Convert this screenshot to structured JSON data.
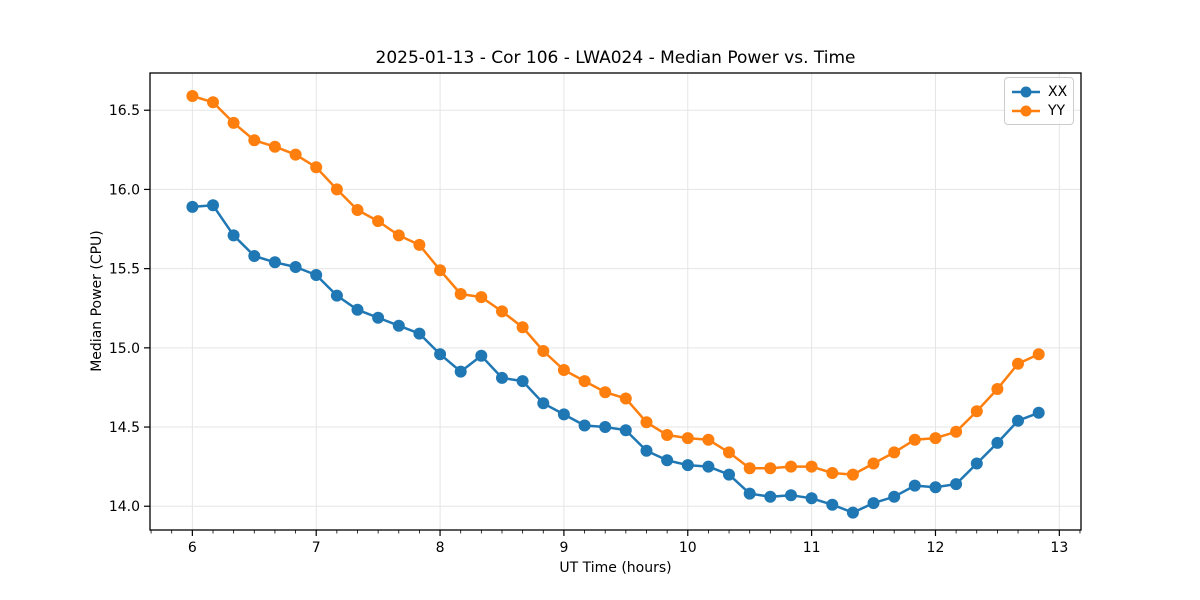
{
  "chart_data": {
    "type": "line",
    "title": "2025-01-13 - Cor 106 - LWA024 - Median Power vs. Time",
    "xlabel": "UT Time (hours)",
    "ylabel": "Median Power (CPU)",
    "xlim": [
      5.658,
      13.175
    ],
    "ylim": [
      13.85,
      16.735
    ],
    "x_ticks": [
      6,
      7,
      8,
      9,
      10,
      11,
      12,
      13
    ],
    "x_tick_labels": [
      "6",
      "7",
      "8",
      "9",
      "10",
      "11",
      "12",
      "13"
    ],
    "x_minor_tick_step": 0.1666667,
    "y_ticks": [
      14.0,
      14.5,
      15.0,
      15.5,
      16.0,
      16.5
    ],
    "y_tick_labels": [
      "14.0",
      "14.5",
      "15.0",
      "15.5",
      "16.0",
      "16.5"
    ],
    "grid": "major",
    "grid_color": "#e5e5e5",
    "spine_color": "#000000",
    "legend_position": "upper right",
    "x": [
      6.0,
      6.1667,
      6.3333,
      6.5,
      6.6667,
      6.8333,
      7.0,
      7.1667,
      7.3333,
      7.5,
      7.6667,
      7.8333,
      8.0,
      8.1667,
      8.3333,
      8.5,
      8.6667,
      8.8333,
      9.0,
      9.1667,
      9.3333,
      9.5,
      9.6667,
      9.8333,
      10.0,
      10.1667,
      10.3333,
      10.5,
      10.6667,
      10.8333,
      11.0,
      11.1667,
      11.3333,
      11.5,
      11.6667,
      11.8333,
      12.0,
      12.1667,
      12.3333,
      12.5,
      12.6667,
      12.8333
    ],
    "series": [
      {
        "name": "XX",
        "color": "#1f77b4",
        "values": [
          15.89,
          15.9,
          15.71,
          15.58,
          15.54,
          15.51,
          15.46,
          15.33,
          15.24,
          15.19,
          15.14,
          15.09,
          14.96,
          14.85,
          14.95,
          14.81,
          14.79,
          14.65,
          14.58,
          14.51,
          14.5,
          14.48,
          14.35,
          14.29,
          14.26,
          14.25,
          14.2,
          14.08,
          14.06,
          14.07,
          14.05,
          14.01,
          13.96,
          14.02,
          14.06,
          14.13,
          14.12,
          14.14,
          14.27,
          14.4,
          14.54,
          14.59
        ]
      },
      {
        "name": "YY",
        "color": "#ff7f0e",
        "values": [
          16.59,
          16.55,
          16.42,
          16.31,
          16.27,
          16.22,
          16.14,
          16.0,
          15.87,
          15.8,
          15.71,
          15.65,
          15.49,
          15.34,
          15.32,
          15.23,
          15.13,
          14.98,
          14.86,
          14.79,
          14.72,
          14.68,
          14.53,
          14.45,
          14.43,
          14.42,
          14.34,
          14.24,
          14.24,
          14.25,
          14.25,
          14.21,
          14.2,
          14.27,
          14.34,
          14.42,
          14.43,
          14.47,
          14.6,
          14.74,
          14.9,
          14.96
        ]
      }
    ]
  }
}
